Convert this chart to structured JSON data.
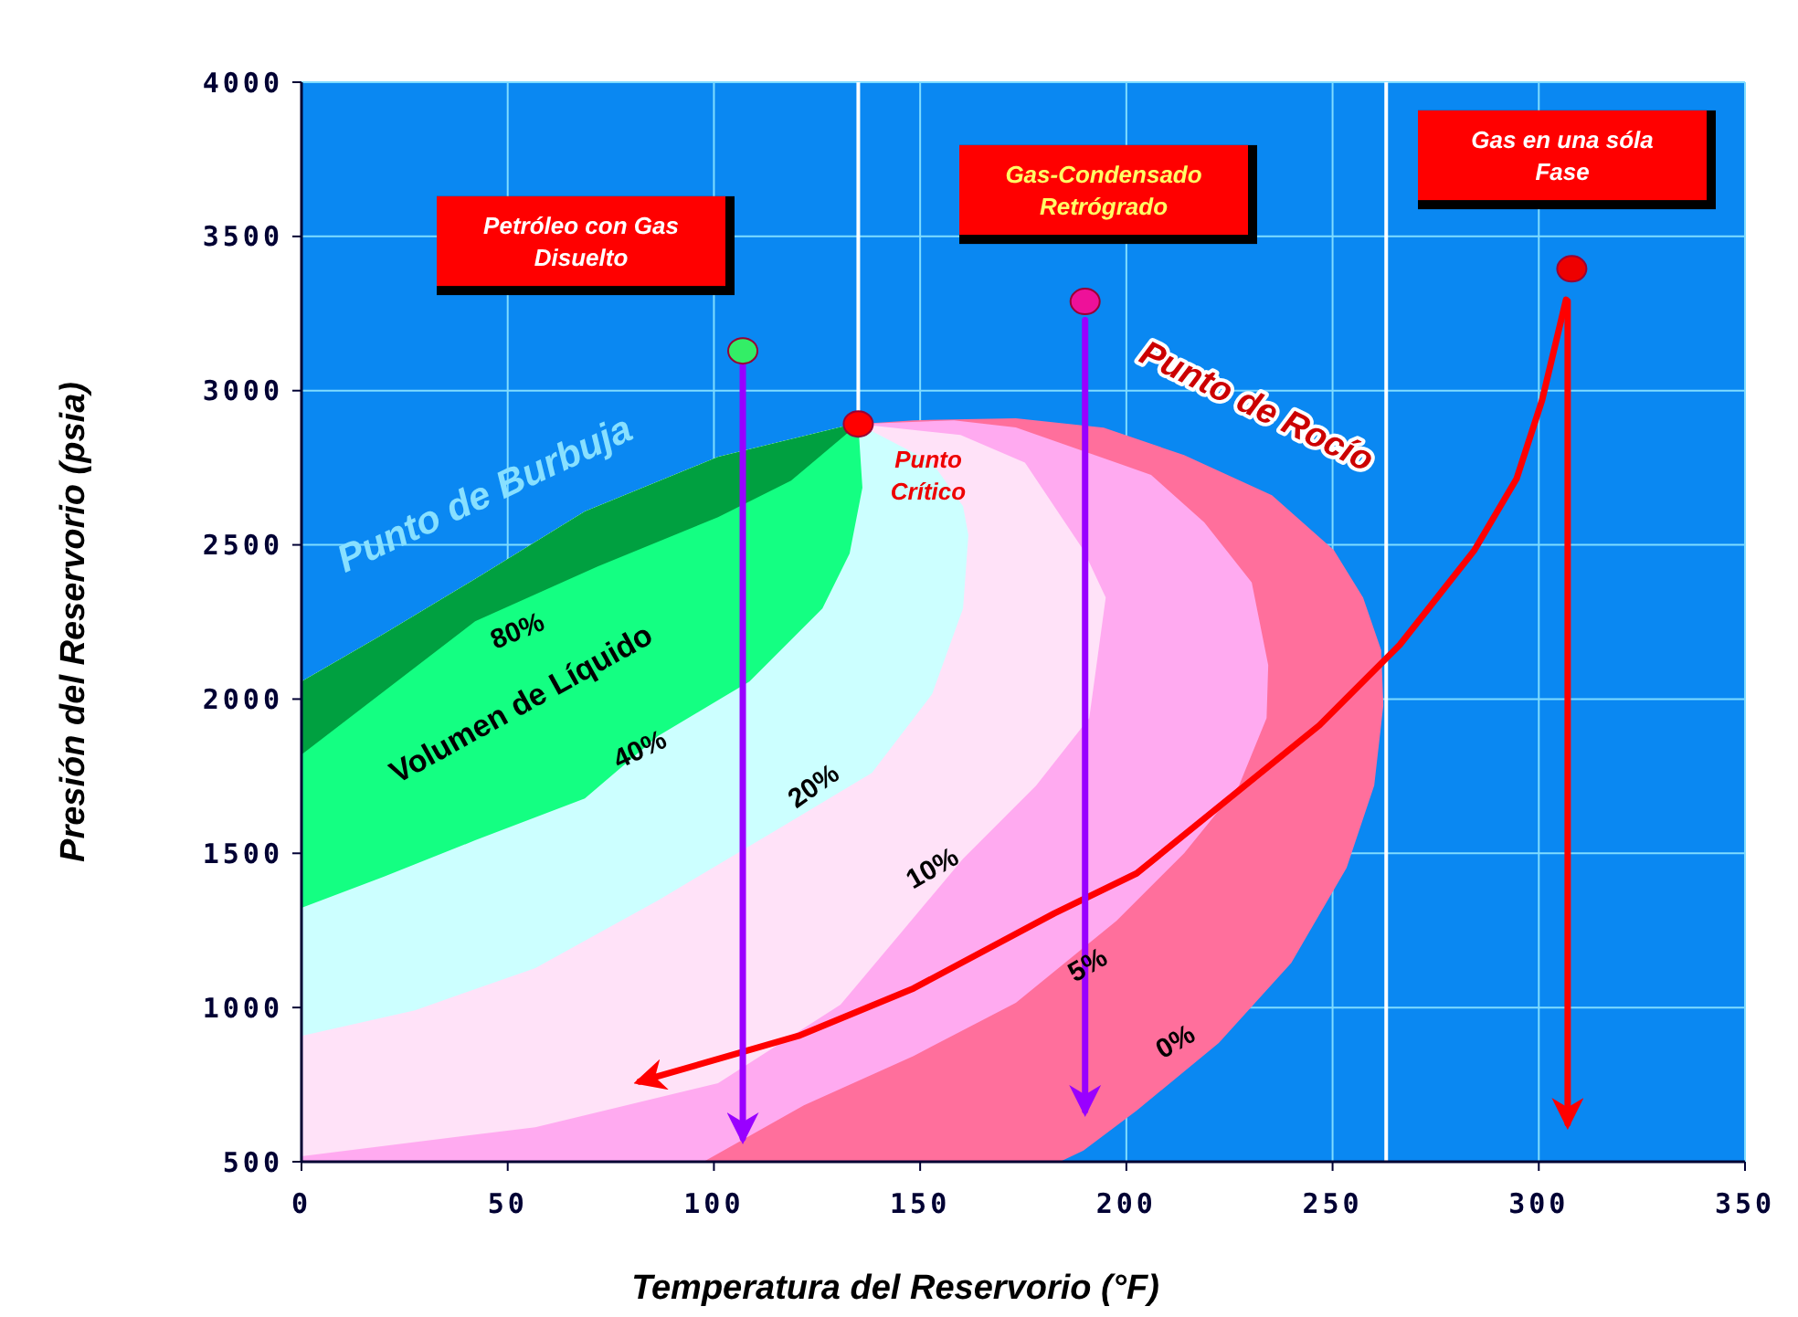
{
  "chart_data": {
    "type": "area",
    "xlabel": "Temperatura del Reservorio  (°F)",
    "ylabel": "Presión del Reservorio  (psia)",
    "xlim": [
      0,
      350
    ],
    "ylim": [
      500,
      4000
    ],
    "xticks": [
      0,
      50,
      100,
      150,
      200,
      250,
      300,
      350
    ],
    "yticks": [
      500,
      1000,
      1500,
      2000,
      2500,
      3000,
      3500,
      4000
    ],
    "grid": true,
    "ref_lines": [
      {
        "axis": "x",
        "value": 135,
        "color": "#ffffff"
      },
      {
        "axis": "x",
        "value": 263,
        "color": "#ffffff"
      }
    ],
    "series": [
      {
        "color": "#ff6f9c",
        "x": [
          0,
          0,
          19.9,
          42.1,
          68.7,
          101,
          132,
          135,
          148.4,
          173.2,
          194.5,
          214,
          235.3,
          250.3,
          257.4,
          261.8,
          262.3,
          260.1,
          253.4,
          240,
          222.4,
          202.5,
          189.6,
          183.9
        ],
        "values": [
          500,
          2057,
          2211,
          2389,
          2608,
          2785,
          2886,
          2892,
          2904,
          2910,
          2880,
          2791,
          2661,
          2483,
          2329,
          2158,
          1980,
          1720,
          1453,
          1145,
          885,
          666,
          536,
          500
        ]
      },
      {
        "color": "#ffaaf0",
        "x": [
          0,
          0,
          19.9,
          42.1,
          68.7,
          101,
          132,
          135,
          158.2,
          173.2,
          206,
          218.9,
          230.4,
          234.4,
          234,
          227.3,
          214,
          197.6,
          173.2,
          148.4,
          121.8,
          97.5
        ],
        "values": [
          500,
          2057,
          2211,
          2389,
          2608,
          2785,
          2886,
          2892,
          2904,
          2881,
          2727,
          2573,
          2378,
          2110,
          1938,
          1719,
          1500,
          1281,
          1015,
          843,
          683,
          500
        ]
      },
      {
        "color": "#ffe2f8",
        "x": [
          0,
          0,
          19.9,
          42.1,
          68.7,
          101,
          132,
          135,
          159.8,
          175.4,
          189.6,
          195,
          191,
          178.1,
          160.4,
          130.7,
          101,
          56.7
        ],
        "values": [
          518,
          2057,
          2211,
          2389,
          2608,
          2785,
          2886,
          2892,
          2856,
          2767,
          2483,
          2329,
          1938,
          1719,
          1482,
          1009,
          755,
          612
        ]
      },
      {
        "color": "#ccffff",
        "x": [
          0,
          0,
          19.9,
          42.1,
          68.7,
          101,
          132,
          135,
          152.9,
          160.4,
          161.7,
          160.4,
          152.9,
          138.3,
          116.2,
          86.4,
          56.7,
          27.5
        ],
        "values": [
          908,
          2057,
          2211,
          2389,
          2608,
          2785,
          2886,
          2892,
          2767,
          2625,
          2531,
          2294,
          2016,
          1761,
          1584,
          1347,
          1128,
          991
        ]
      },
      {
        "color": "#14ff82",
        "x": [
          0,
          0,
          19.9,
          42.1,
          68.7,
          101,
          132,
          135,
          136,
          132.9,
          126.3,
          108.6,
          86.4,
          68.7,
          42.1,
          19.9
        ],
        "values": [
          1323,
          2057,
          2211,
          2389,
          2608,
          2785,
          2886,
          2892,
          2685,
          2472,
          2294,
          2057,
          1880,
          1678,
          1542,
          1424
        ]
      },
      {
        "color": "#00a040",
        "x": [
          0,
          0,
          19.9,
          42.1,
          68.7,
          101,
          132,
          135,
          118.7,
          101,
          71.8,
          42.1
        ],
        "values": [
          1820,
          2057,
          2211,
          2389,
          2608,
          2785,
          2886,
          2892,
          2708,
          2590,
          2430,
          2252
        ]
      },
      {
        "type": "line",
        "color": "#ff0000",
        "line_style": "solid",
        "marker": "none",
        "x": [
          306.6,
          300.8,
          294.6,
          284.4,
          266.3,
          246.8,
          202.5,
          182.5,
          148.4,
          120.5,
          82
        ],
        "values": [
          3295,
          2969,
          2714,
          2483,
          2176,
          1915,
          1435,
          1305,
          1062,
          908,
          760
        ]
      },
      {
        "type": "line",
        "color": "#9900ff",
        "line_style": "solid",
        "marker": "none",
        "x": [
          107,
          107
        ],
        "values": [
          3081,
          577
        ]
      },
      {
        "type": "line",
        "color": "#9900ff",
        "line_style": "solid",
        "marker": "none",
        "x": [
          190,
          190
        ],
        "values": [
          3229,
          666
        ]
      },
      {
        "type": "line",
        "color": "#ff0000",
        "line_style": "solid",
        "marker": "none",
        "x": [
          307,
          307
        ],
        "values": [
          3290,
          624
        ]
      },
      {
        "type": "scatter",
        "marker": "circle",
        "x": [
          107,
          135,
          190,
          308
        ],
        "values": [
          3129,
          2892,
          3289,
          3395
        ],
        "colors": [
          "#33ee66",
          "#ff0000",
          "#ee1199",
          "#ee0000"
        ]
      }
    ],
    "annotations": [
      "Petróleo con Gas Disuelto",
      "Gas-Condensado Retrógrado",
      "Gas en una sóla Fase",
      "Punto de Burbuja",
      "Punto de Rocío",
      "Punto Crítico",
      "Volumen de Líquido",
      "80%",
      "40%",
      "20%",
      "10%",
      "5%",
      "0%"
    ]
  }
}
